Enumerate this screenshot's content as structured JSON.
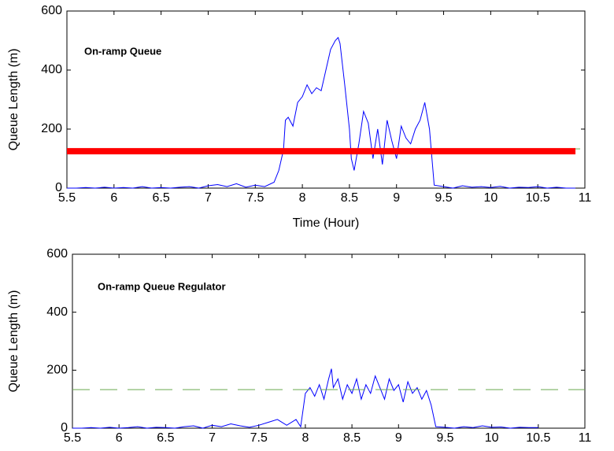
{
  "chart_data": [
    {
      "type": "line",
      "annotation": "On-ramp Queue",
      "xlabel": "Time (Hour)",
      "ylabel": "Queue Length (m)",
      "xlim": [
        5.5,
        11
      ],
      "ylim": [
        0,
        600
      ],
      "xticks": [
        5.5,
        6,
        6.5,
        7,
        7.5,
        8,
        8.5,
        9,
        9.5,
        10,
        10.5,
        11
      ],
      "yticks": [
        0,
        200,
        400,
        600
      ],
      "series": [
        {
          "color": "#0000ff",
          "style": "solid",
          "x": [
            5.5,
            5.6,
            5.7,
            5.8,
            5.9,
            6.0,
            6.1,
            6.2,
            6.3,
            6.4,
            6.5,
            6.6,
            6.7,
            6.8,
            6.9,
            7.0,
            7.1,
            7.2,
            7.3,
            7.4,
            7.5,
            7.6,
            7.7,
            7.75,
            7.8,
            7.82,
            7.85,
            7.9,
            7.95,
            8.0,
            8.05,
            8.1,
            8.15,
            8.2,
            8.25,
            8.3,
            8.35,
            8.38,
            8.4,
            8.45,
            8.5,
            8.52,
            8.55,
            8.6,
            8.65,
            8.7,
            8.75,
            8.8,
            8.85,
            8.9,
            8.95,
            9.0,
            9.05,
            9.1,
            9.15,
            9.2,
            9.25,
            9.3,
            9.35,
            9.4,
            9.5,
            9.6,
            9.7,
            9.8,
            9.9,
            10.0,
            10.1,
            10.2,
            10.3,
            10.4,
            10.5,
            10.6,
            10.7,
            10.8,
            10.9
          ],
          "values": [
            0,
            0,
            2,
            0,
            3,
            0,
            2,
            0,
            5,
            0,
            2,
            0,
            3,
            5,
            0,
            8,
            12,
            5,
            15,
            3,
            10,
            5,
            20,
            60,
            130,
            230,
            240,
            210,
            290,
            310,
            350,
            320,
            340,
            330,
            400,
            470,
            500,
            510,
            490,
            350,
            200,
            100,
            60,
            150,
            260,
            220,
            100,
            200,
            80,
            230,
            160,
            100,
            210,
            170,
            150,
            200,
            230,
            290,
            200,
            10,
            5,
            0,
            8,
            3,
            5,
            2,
            6,
            0,
            3,
            2,
            5,
            0,
            3,
            0,
            0
          ]
        },
        {
          "color": "#6aa84f",
          "style": "dashed",
          "x": [
            5.5,
            11
          ],
          "values": [
            133,
            133
          ]
        },
        {
          "color": "#ff0000",
          "style": "thick",
          "x": [
            5.5,
            10.9
          ],
          "values": [
            125,
            125
          ]
        }
      ]
    },
    {
      "type": "line",
      "annotation": "On-ramp Queue Regulator",
      "ylabel": "Queue Length (m)",
      "xlim": [
        5.5,
        11
      ],
      "ylim": [
        0,
        600
      ],
      "xticks": [
        5.5,
        6,
        6.5,
        7,
        7.5,
        8,
        8.5,
        9,
        9.5,
        10,
        10.5,
        11
      ],
      "yticks": [
        0,
        200,
        400,
        600
      ],
      "series": [
        {
          "color": "#0000ff",
          "style": "solid",
          "x": [
            5.5,
            5.6,
            5.7,
            5.8,
            5.9,
            6.0,
            6.1,
            6.2,
            6.3,
            6.4,
            6.5,
            6.6,
            6.7,
            6.8,
            6.9,
            7.0,
            7.1,
            7.2,
            7.3,
            7.4,
            7.5,
            7.6,
            7.7,
            7.8,
            7.9,
            7.95,
            8.0,
            8.05,
            8.1,
            8.15,
            8.2,
            8.25,
            8.28,
            8.3,
            8.35,
            8.4,
            8.45,
            8.5,
            8.55,
            8.6,
            8.65,
            8.7,
            8.75,
            8.8,
            8.85,
            8.9,
            8.95,
            9.0,
            9.05,
            9.1,
            9.15,
            9.2,
            9.25,
            9.3,
            9.35,
            9.4,
            9.5,
            9.6,
            9.7,
            9.8,
            9.9,
            10.0,
            10.1,
            10.2,
            10.3,
            10.4,
            10.5
          ],
          "values": [
            0,
            0,
            2,
            0,
            3,
            0,
            2,
            5,
            0,
            3,
            2,
            0,
            5,
            8,
            0,
            10,
            5,
            15,
            8,
            3,
            10,
            20,
            30,
            10,
            30,
            5,
            120,
            140,
            110,
            150,
            100,
            170,
            205,
            140,
            170,
            100,
            150,
            120,
            170,
            100,
            150,
            120,
            180,
            140,
            100,
            170,
            130,
            150,
            90,
            160,
            120,
            140,
            100,
            130,
            80,
            5,
            3,
            0,
            5,
            2,
            8,
            3,
            4,
            0,
            3,
            2,
            2
          ]
        },
        {
          "color": "#6aa84f",
          "style": "dashed",
          "x": [
            5.5,
            11
          ],
          "values": [
            133,
            133
          ]
        }
      ]
    }
  ]
}
